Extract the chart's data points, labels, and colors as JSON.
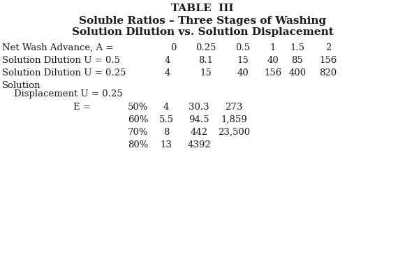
{
  "title1": "TABLE  III",
  "title2": "Soluble Ratios – Three Stages of Washing",
  "title3": "Solution Dilution vs. Solution Displacement",
  "row1_label": "Net Wash Advance, A =",
  "row1_vals": [
    "0",
    "0.25",
    "0.5",
    "1",
    "1.5",
    "2"
  ],
  "row2_label": "Solution Dilution U = 0.5",
  "row2_pre": "4",
  "row2_vals": [
    "8.1",
    "15",
    "40",
    "85",
    "156"
  ],
  "row3_label": "Solution Dilution U = 0.25",
  "row3_pre": "4",
  "row3_vals": [
    "15",
    "40",
    "156",
    "400",
    "820"
  ],
  "row4a": "Solution",
  "row4b": "    Displacement U = 0.25",
  "row5a": "            E =",
  "row5b": "50%",
  "row5_vals": [
    "4",
    "30.3",
    "273"
  ],
  "row6b": "60%",
  "row6_vals": [
    "5.5",
    "94.5",
    "1,859"
  ],
  "row7b": "70%",
  "row7_vals": [
    "8",
    "442",
    "23,500"
  ],
  "row8b": "80%",
  "row8_vals": [
    "13",
    "4392"
  ],
  "bg_color": "#ffffff",
  "text_color": "#1a1a1a",
  "title_fontsize": 11,
  "subtitle_fontsize": 11,
  "body_fontsize": 9.5
}
